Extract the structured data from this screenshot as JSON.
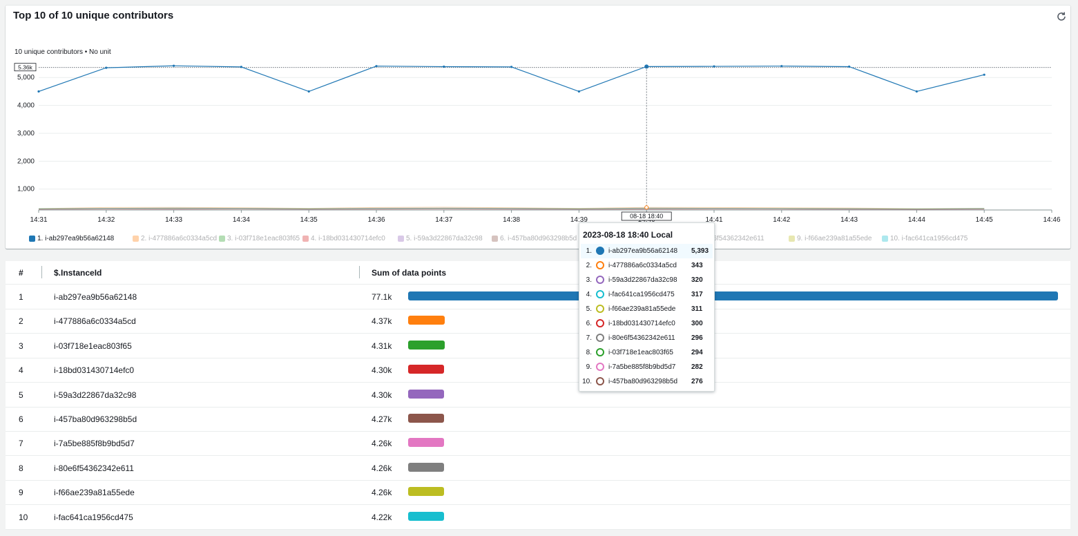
{
  "widget": {
    "title": "Top 10 of 10 unique contributors",
    "subtitle": "10 unique contributors • No unit",
    "refresh_icon": "refresh-icon"
  },
  "colors": [
    "#1f77b4",
    "#ff7f0e",
    "#2ca02c",
    "#d62728",
    "#9467bd",
    "#8c564b",
    "#e377c2",
    "#7f7f7f",
    "#bcbd22",
    "#17becf"
  ],
  "chart_data": {
    "type": "line",
    "x": [
      "14:31",
      "14:32",
      "14:33",
      "14:34",
      "14:35",
      "14:36",
      "14:37",
      "14:38",
      "14:39",
      "14:40",
      "14:41",
      "14:42",
      "14:43",
      "14:44",
      "14:45"
    ],
    "x_ticks": [
      "14:31",
      "14:32",
      "14:33",
      "14:34",
      "14:35",
      "14:36",
      "14:37",
      "14:38",
      "14:39",
      "14:40",
      "14:41",
      "14:42",
      "14:43",
      "14:44",
      "14:45",
      "14:46"
    ],
    "y_ticks": [
      "1,000",
      "2,000",
      "3,000",
      "4,000",
      "5,000"
    ],
    "ylim": [
      250,
      5600
    ],
    "threshold_label": "5.36k",
    "threshold_value": 5360,
    "cursor_label": "08-18 18:40",
    "cursor_x": "14:40",
    "grid": true,
    "legend": "bottom",
    "series": [
      {
        "name": "1. i-ab297ea9b56a62148",
        "values": [
          4500,
          5350,
          5420,
          5380,
          4500,
          5410,
          5390,
          5380,
          4500,
          5393,
          5400,
          5410,
          5390,
          4500,
          5100
        ]
      },
      {
        "name": "2. i-477886a6c0334a5cd",
        "values": [
          300,
          340,
          343,
          330,
          310,
          340,
          350,
          330,
          310,
          343,
          340,
          330,
          320,
          300,
          310
        ]
      },
      {
        "name": "3. i-03f718e1eac803f65",
        "values": [
          290,
          300,
          294,
          300,
          290,
          300,
          310,
          300,
          290,
          294,
          300,
          300,
          290,
          280,
          300
        ]
      },
      {
        "name": "4. i-18bd031430714efc0",
        "values": [
          285,
          295,
          300,
          300,
          285,
          300,
          305,
          300,
          285,
          300,
          305,
          295,
          290,
          280,
          295
        ]
      },
      {
        "name": "5. i-59a3d22867da32c98",
        "values": [
          290,
          310,
          320,
          310,
          290,
          315,
          320,
          310,
          290,
          320,
          310,
          300,
          300,
          285,
          300
        ]
      },
      {
        "name": "6. i-457ba80d963298b5d",
        "values": [
          270,
          280,
          276,
          280,
          270,
          276,
          280,
          275,
          270,
          276,
          280,
          280,
          270,
          260,
          270
        ]
      },
      {
        "name": "7. i-7a5be885f8b9bd5d7",
        "values": [
          275,
          285,
          282,
          290,
          275,
          285,
          290,
          280,
          275,
          282,
          285,
          280,
          275,
          265,
          280
        ]
      },
      {
        "name": "8. i-80e6f54362342e611",
        "values": [
          285,
          295,
          296,
          295,
          285,
          295,
          300,
          295,
          285,
          296,
          295,
          290,
          285,
          275,
          290
        ]
      },
      {
        "name": "9. i-f66ae239a81a55ede",
        "values": [
          290,
          305,
          311,
          305,
          290,
          305,
          310,
          305,
          290,
          311,
          305,
          300,
          295,
          285,
          300
        ]
      },
      {
        "name": "10. i-fac641ca1956cd475",
        "values": [
          295,
          310,
          317,
          310,
          295,
          310,
          315,
          310,
          295,
          317,
          310,
          305,
          300,
          290,
          305
        ]
      }
    ]
  },
  "tooltip": {
    "title": "2023-08-18 18:40 Local",
    "rows": [
      {
        "rank": "1.",
        "id": "i-ab297ea9b56a62148",
        "value": "5,393",
        "color": "#1f77b4",
        "filled": true
      },
      {
        "rank": "2.",
        "id": "i-477886a6c0334a5cd",
        "value": "343",
        "color": "#ff7f0e",
        "filled": false
      },
      {
        "rank": "3.",
        "id": "i-59a3d22867da32c98",
        "value": "320",
        "color": "#9467bd",
        "filled": false
      },
      {
        "rank": "4.",
        "id": "i-fac641ca1956cd475",
        "value": "317",
        "color": "#17becf",
        "filled": false
      },
      {
        "rank": "5.",
        "id": "i-f66ae239a81a55ede",
        "value": "311",
        "color": "#bcbd22",
        "filled": false
      },
      {
        "rank": "6.",
        "id": "i-18bd031430714efc0",
        "value": "300",
        "color": "#d62728",
        "filled": false
      },
      {
        "rank": "7.",
        "id": "i-80e6f54362342e611",
        "value": "296",
        "color": "#7f7f7f",
        "filled": false
      },
      {
        "rank": "8.",
        "id": "i-03f718e1eac803f65",
        "value": "294",
        "color": "#2ca02c",
        "filled": false
      },
      {
        "rank": "9.",
        "id": "i-7a5be885f8b9bd5d7",
        "value": "282",
        "color": "#e377c2",
        "filled": false
      },
      {
        "rank": "10.",
        "id": "i-457ba80d963298b5d",
        "value": "276",
        "color": "#8c564b",
        "filled": false
      }
    ]
  },
  "table": {
    "headers": [
      "#",
      "$.InstanceId",
      "Sum of data points"
    ],
    "rows": [
      {
        "rank": "1",
        "id": "i-ab297ea9b56a62148",
        "sum": "77.1k",
        "value": 77100,
        "color": "#1f77b4"
      },
      {
        "rank": "2",
        "id": "i-477886a6c0334a5cd",
        "sum": "4.37k",
        "value": 4370,
        "color": "#ff7f0e"
      },
      {
        "rank": "3",
        "id": "i-03f718e1eac803f65",
        "sum": "4.31k",
        "value": 4310,
        "color": "#2ca02c"
      },
      {
        "rank": "4",
        "id": "i-18bd031430714efc0",
        "sum": "4.30k",
        "value": 4300,
        "color": "#d62728"
      },
      {
        "rank": "5",
        "id": "i-59a3d22867da32c98",
        "sum": "4.30k",
        "value": 4300,
        "color": "#9467bd"
      },
      {
        "rank": "6",
        "id": "i-457ba80d963298b5d",
        "sum": "4.27k",
        "value": 4270,
        "color": "#8c564b"
      },
      {
        "rank": "7",
        "id": "i-7a5be885f8b9bd5d7",
        "sum": "4.26k",
        "value": 4260,
        "color": "#e377c2"
      },
      {
        "rank": "8",
        "id": "i-80e6f54362342e611",
        "sum": "4.26k",
        "value": 4260,
        "color": "#7f7f7f"
      },
      {
        "rank": "9",
        "id": "i-f66ae239a81a55ede",
        "sum": "4.26k",
        "value": 4260,
        "color": "#bcbd22"
      },
      {
        "rank": "10",
        "id": "i-fac641ca1956cd475",
        "sum": "4.22k",
        "value": 4220,
        "color": "#17becf"
      }
    ]
  }
}
